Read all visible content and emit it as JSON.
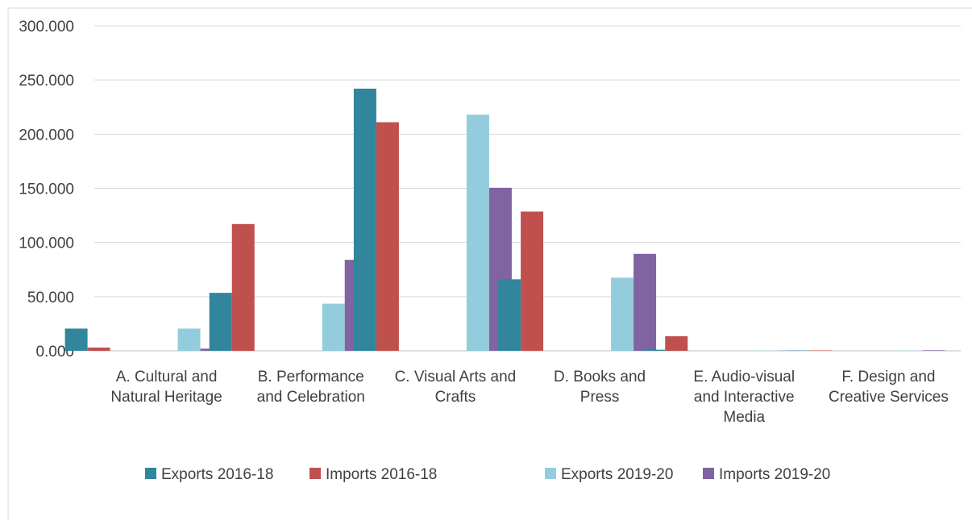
{
  "chart_data": {
    "type": "bar",
    "title": "",
    "xlabel": "",
    "ylabel": "",
    "ylim": [
      0,
      300
    ],
    "yticks": [
      {
        "value": 0,
        "label": "0.000"
      },
      {
        "value": 50,
        "label": "50.000"
      },
      {
        "value": 100,
        "label": "100.000"
      },
      {
        "value": 150,
        "label": "150.000"
      },
      {
        "value": 200,
        "label": "200.000"
      },
      {
        "value": 250,
        "label": "250.000"
      },
      {
        "value": 300,
        "label": "300.000"
      }
    ],
    "grid": true,
    "legend_position": "bottom",
    "categories": [
      [
        "A. Cultural and",
        "Natural Heritage"
      ],
      [
        "B. Performance",
        "and Celebration"
      ],
      [
        "C. Visual Arts and",
        "Crafts"
      ],
      [
        "D. Books and",
        "Press"
      ],
      [
        "E. Audio-visual",
        "and Interactive",
        "Media"
      ],
      [
        "F. Design and",
        "Creative Services"
      ]
    ],
    "series": [
      {
        "name": "Exports 2016-18",
        "color": "#31859C",
        "values": [
          20.5,
          53.5,
          242.0,
          66.0,
          1.0,
          0.3
        ]
      },
      {
        "name": "Imports 2016-18",
        "color": "#C0504D",
        "values": [
          3.0,
          117.0,
          211.0,
          128.5,
          13.5,
          0.4
        ]
      },
      {
        "name": "Exports 2019-20",
        "color": "#93CDDD",
        "values": [
          20.5,
          43.5,
          218.0,
          67.5,
          0.3,
          0.3
        ]
      },
      {
        "name": "Imports 2019-20",
        "color": "#8064A2",
        "values": [
          2.0,
          84.0,
          150.5,
          89.5,
          0.2,
          0.5
        ]
      }
    ]
  }
}
